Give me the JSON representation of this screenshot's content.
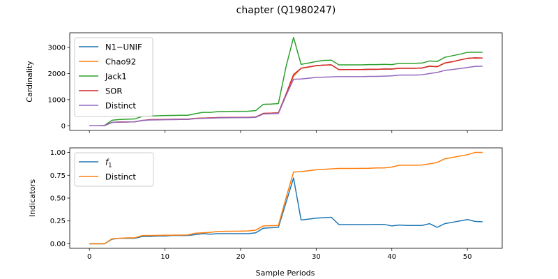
{
  "figure_title": "chapter (Q1980247)",
  "chart_data": [
    {
      "type": "line",
      "panel": "top",
      "xlabel": "",
      "ylabel": "Cardinality",
      "xlim": [
        -2.6,
        54.6
      ],
      "ylim": [
        -180,
        3560
      ],
      "xticks": [
        0,
        10,
        20,
        30,
        40,
        50
      ],
      "yticks": [
        0,
        1000,
        2000,
        3000
      ],
      "ytick_labels": [
        "0",
        "1000",
        "2000",
        "3000"
      ],
      "legend_position": "upper-left",
      "x": [
        0,
        1,
        2,
        3,
        4,
        5,
        6,
        7,
        8,
        9,
        10,
        11,
        12,
        13,
        14,
        15,
        16,
        17,
        18,
        19,
        20,
        21,
        22,
        23,
        24,
        25,
        26,
        27,
        28,
        29,
        30,
        31,
        32,
        33,
        34,
        35,
        36,
        37,
        38,
        39,
        40,
        41,
        42,
        43,
        44,
        45,
        46,
        47,
        48,
        49,
        50,
        51,
        52
      ],
      "series": [
        {
          "name": "N1−UNIF",
          "color": "#1f77b4",
          "values": [
            0,
            0,
            5,
            130,
            140,
            145,
            150,
            200,
            230,
            235,
            240,
            245,
            250,
            250,
            280,
            290,
            300,
            310,
            315,
            318,
            320,
            322,
            330,
            470,
            480,
            490,
            1200,
            1900,
            2200,
            2250,
            2300,
            2320,
            2330,
            2150,
            2150,
            2150,
            2150,
            2160,
            2160,
            2170,
            2170,
            2200,
            2200,
            2200,
            2210,
            2280,
            2260,
            2400,
            2450,
            2520,
            2580,
            2600,
            2590
          ]
        },
        {
          "name": "Chao92",
          "color": "#ff7f0e",
          "values": [
            0,
            0,
            5,
            130,
            140,
            145,
            150,
            200,
            230,
            235,
            240,
            245,
            250,
            250,
            280,
            290,
            300,
            310,
            315,
            318,
            320,
            322,
            330,
            470,
            480,
            490,
            1200,
            1900,
            2200,
            2250,
            2300,
            2320,
            2330,
            2150,
            2150,
            2150,
            2150,
            2160,
            2160,
            2170,
            2170,
            2200,
            2200,
            2200,
            2210,
            2280,
            2260,
            2400,
            2450,
            2520,
            2580,
            2600,
            2590
          ]
        },
        {
          "name": "Jack1",
          "color": "#2ca02c",
          "values": [
            0,
            0,
            10,
            210,
            240,
            250,
            260,
            360,
            370,
            380,
            390,
            395,
            400,
            400,
            460,
            510,
            510,
            540,
            545,
            550,
            550,
            555,
            580,
            820,
            830,
            850,
            2250,
            3380,
            2350,
            2400,
            2460,
            2500,
            2510,
            2330,
            2330,
            2330,
            2330,
            2340,
            2340,
            2350,
            2340,
            2390,
            2390,
            2390,
            2400,
            2480,
            2460,
            2620,
            2680,
            2740,
            2810,
            2820,
            2810
          ]
        },
        {
          "name": "SOR",
          "color": "#d62728",
          "values": [
            0,
            0,
            5,
            130,
            140,
            145,
            150,
            200,
            230,
            235,
            240,
            245,
            250,
            250,
            280,
            290,
            300,
            310,
            315,
            318,
            320,
            322,
            330,
            470,
            480,
            490,
            1200,
            1960,
            2200,
            2250,
            2300,
            2320,
            2330,
            2150,
            2150,
            2150,
            2150,
            2160,
            2160,
            2170,
            2170,
            2200,
            2200,
            2200,
            2210,
            2280,
            2260,
            2400,
            2450,
            2520,
            2580,
            2600,
            2590
          ]
        },
        {
          "name": "Distinct",
          "color": "#9467bd",
          "values": [
            0,
            0,
            5,
            130,
            140,
            145,
            150,
            200,
            220,
            225,
            230,
            235,
            240,
            240,
            270,
            280,
            290,
            300,
            305,
            308,
            310,
            312,
            320,
            450,
            460,
            470,
            1150,
            1780,
            1790,
            1820,
            1850,
            1860,
            1870,
            1880,
            1880,
            1880,
            1880,
            1890,
            1890,
            1900,
            1910,
            1940,
            1940,
            1940,
            1950,
            2000,
            2040,
            2120,
            2150,
            2190,
            2230,
            2270,
            2280
          ]
        }
      ]
    },
    {
      "type": "line",
      "panel": "bottom",
      "xlabel": "Sample Periods",
      "ylabel": "Indicators",
      "xlim": [
        -2.6,
        54.6
      ],
      "ylim": [
        -0.05,
        1.05
      ],
      "xticks": [
        0,
        10,
        20,
        30,
        40,
        50
      ],
      "xtick_labels": [
        "0",
        "10",
        "20",
        "30",
        "40",
        "50"
      ],
      "yticks": [
        0,
        0.25,
        0.5,
        0.75,
        1.0
      ],
      "ytick_labels": [
        "0.00",
        "0.25",
        "0.50",
        "0.75",
        "1.00"
      ],
      "legend_position": "upper-left",
      "x": [
        0,
        1,
        2,
        3,
        4,
        5,
        6,
        7,
        8,
        9,
        10,
        11,
        12,
        13,
        14,
        15,
        16,
        17,
        18,
        19,
        20,
        21,
        22,
        23,
        24,
        25,
        26,
        27,
        28,
        29,
        30,
        31,
        32,
        33,
        34,
        35,
        36,
        37,
        38,
        39,
        40,
        41,
        42,
        43,
        44,
        45,
        46,
        47,
        48,
        49,
        50,
        51,
        52
      ],
      "series": [
        {
          "name": "f1",
          "color": "#1f77b4",
          "values": [
            0.0,
            0.0,
            0.0,
            0.05,
            0.06,
            0.06,
            0.06,
            0.08,
            0.08,
            0.085,
            0.085,
            0.09,
            0.09,
            0.09,
            0.1,
            0.11,
            0.105,
            0.11,
            0.11,
            0.11,
            0.11,
            0.11,
            0.12,
            0.17,
            0.175,
            0.18,
            0.45,
            0.72,
            0.26,
            0.27,
            0.28,
            0.285,
            0.29,
            0.21,
            0.21,
            0.21,
            0.21,
            0.21,
            0.212,
            0.212,
            0.195,
            0.205,
            0.2,
            0.2,
            0.2,
            0.22,
            0.18,
            0.22,
            0.235,
            0.25,
            0.265,
            0.245,
            0.24
          ]
        },
        {
          "name": "Distinct",
          "color": "#ff7f0e",
          "values": [
            0.0,
            0.0,
            0.0,
            0.055,
            0.06,
            0.065,
            0.065,
            0.09,
            0.09,
            0.092,
            0.093,
            0.094,
            0.095,
            0.096,
            0.115,
            0.12,
            0.125,
            0.135,
            0.136,
            0.137,
            0.138,
            0.14,
            0.15,
            0.195,
            0.198,
            0.2,
            0.5,
            0.785,
            0.79,
            0.8,
            0.81,
            0.815,
            0.82,
            0.825,
            0.825,
            0.825,
            0.826,
            0.827,
            0.83,
            0.83,
            0.84,
            0.86,
            0.86,
            0.86,
            0.862,
            0.875,
            0.89,
            0.93,
            0.945,
            0.96,
            0.975,
            1.0,
            1.0
          ]
        }
      ]
    }
  ]
}
